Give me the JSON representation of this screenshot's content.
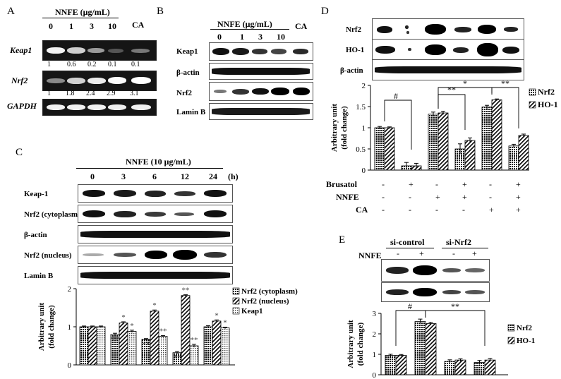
{
  "panels": {
    "A": {
      "label": "A",
      "header": "NNFE  (μg/mL)",
      "doses": [
        "0",
        "1",
        "3",
        "10"
      ],
      "ca": "CA",
      "rows": [
        {
          "name": "Keap1",
          "values": [
            "1",
            "0.6",
            "0.2",
            "0.1",
            "0.1"
          ]
        },
        {
          "name": "Nrf2",
          "values": [
            "1",
            "1.8",
            "2.4",
            "2.9",
            "3.1"
          ]
        },
        {
          "name": "GAPDH",
          "values": []
        }
      ]
    },
    "B": {
      "label": "B",
      "header": "NNFE (μg/mL)",
      "doses": [
        "0",
        "1",
        "3",
        "10"
      ],
      "ca": "CA",
      "rows": [
        "Keap1",
        "β-actin",
        "Nrf2",
        "Lamin B"
      ]
    },
    "C": {
      "label": "C",
      "header": "NNFE (10 μg/mL)",
      "times": [
        "0",
        "3",
        "6",
        "12",
        "24"
      ],
      "unit": "(h)",
      "rows": [
        "Keap-1",
        "Nrf2 (cytoplasm)",
        "β-actin",
        "Nrf2 (nucleus)",
        "Lamin B"
      ]
    },
    "D": {
      "label": "D",
      "rows": [
        "Nrf2",
        "HO-1",
        "β-actin"
      ],
      "treatments": [
        {
          "name": "Brusatol",
          "signs": [
            "-",
            "+",
            "-",
            "+",
            "-",
            "+"
          ]
        },
        {
          "name": "NNFE",
          "signs": [
            "-",
            "-",
            "+",
            "+",
            "-",
            "+"
          ]
        },
        {
          "name": "CA",
          "signs": [
            "-",
            "-",
            "-",
            "-",
            "+",
            "+"
          ]
        }
      ]
    },
    "E": {
      "label": "E",
      "groups": [
        "si-control",
        "si-Nrf2"
      ],
      "treatment": "NNFE",
      "signs": [
        "-",
        "+",
        "-",
        "+"
      ]
    }
  },
  "chart_data": [
    {
      "id": "C",
      "type": "bar",
      "categories": [
        "0",
        "3",
        "6",
        "12",
        "24"
      ],
      "series": [
        {
          "name": "Nrf2 (cytoplasm)",
          "values": [
            1.0,
            0.8,
            0.67,
            0.32,
            1.0
          ],
          "errors": [
            0.02,
            0.03,
            0.02,
            0.03,
            0.03
          ],
          "pattern": "dots-dark"
        },
        {
          "name": "Nrf2 (nucleus)",
          "values": [
            1.0,
            1.1,
            1.41,
            1.82,
            1.15
          ],
          "errors": [
            0.02,
            0.03,
            0.03,
            0.02,
            0.03
          ],
          "pattern": "hatch"
        },
        {
          "name": "Keap1",
          "values": [
            1.0,
            0.88,
            0.75,
            0.5,
            0.97
          ],
          "errors": [
            0.02,
            0.03,
            0.02,
            0.04,
            0.02
          ],
          "pattern": "dots-light"
        }
      ],
      "annotations": [
        {
          "cat": 1,
          "series": 0,
          "text": "**"
        },
        {
          "cat": 1,
          "series": 1,
          "text": "*"
        },
        {
          "cat": 1,
          "series": 2,
          "text": "*"
        },
        {
          "cat": 2,
          "series": 0,
          "text": "**"
        },
        {
          "cat": 2,
          "series": 1,
          "text": "*"
        },
        {
          "cat": 2,
          "series": 2,
          "text": "**"
        },
        {
          "cat": 3,
          "series": 0,
          "text": "**"
        },
        {
          "cat": 3,
          "series": 1,
          "text": "**"
        },
        {
          "cat": 3,
          "series": 2,
          "text": "**"
        },
        {
          "cat": 4,
          "series": 1,
          "text": "*"
        },
        {
          "cat": 4,
          "series": 2,
          "text": "*"
        }
      ],
      "ylabel": "Arbitrary unit\n(fold change)",
      "ylim": [
        0,
        2
      ],
      "yticks": [
        0,
        1,
        2
      ],
      "legend": "right"
    },
    {
      "id": "D",
      "type": "bar",
      "categories": [
        "1",
        "2",
        "3",
        "4",
        "5",
        "6"
      ],
      "series": [
        {
          "name": "Nrf2",
          "values": [
            1.0,
            0.1,
            1.32,
            0.5,
            1.49,
            0.57
          ],
          "errors": [
            0.03,
            0.08,
            0.05,
            0.12,
            0.04,
            0.04
          ],
          "pattern": "dots-dark"
        },
        {
          "name": "HO-1",
          "values": [
            1.0,
            0.1,
            1.35,
            0.7,
            1.66,
            0.82
          ],
          "errors": [
            0.02,
            0.06,
            0.04,
            0.06,
            0.02,
            0.03
          ],
          "pattern": "hatch"
        }
      ],
      "significance": [
        "#",
        "**",
        "*",
        "**"
      ],
      "ylabel": "Arbitrary unit\n(fold change)",
      "ylim": [
        0,
        2
      ],
      "yticks": [
        0,
        0.5,
        1,
        1.5,
        2
      ],
      "legend": "right"
    },
    {
      "id": "E",
      "type": "bar",
      "categories": [
        "1",
        "2",
        "3",
        "4"
      ],
      "series": [
        {
          "name": "Nrf2",
          "values": [
            0.95,
            2.6,
            0.65,
            0.6
          ],
          "errors": [
            0.05,
            0.12,
            0.08,
            0.1
          ],
          "pattern": "dots-dark"
        },
        {
          "name": "HO-1",
          "values": [
            0.95,
            2.5,
            0.72,
            0.72
          ],
          "errors": [
            0.04,
            0.06,
            0.06,
            0.08
          ],
          "pattern": "hatch"
        }
      ],
      "significance": [
        "#",
        "**"
      ],
      "ylabel": "Arbitrary unit\n(fold change)",
      "ylim": [
        0,
        3
      ],
      "yticks": [
        0,
        1,
        2,
        3
      ],
      "legend": "right"
    }
  ]
}
